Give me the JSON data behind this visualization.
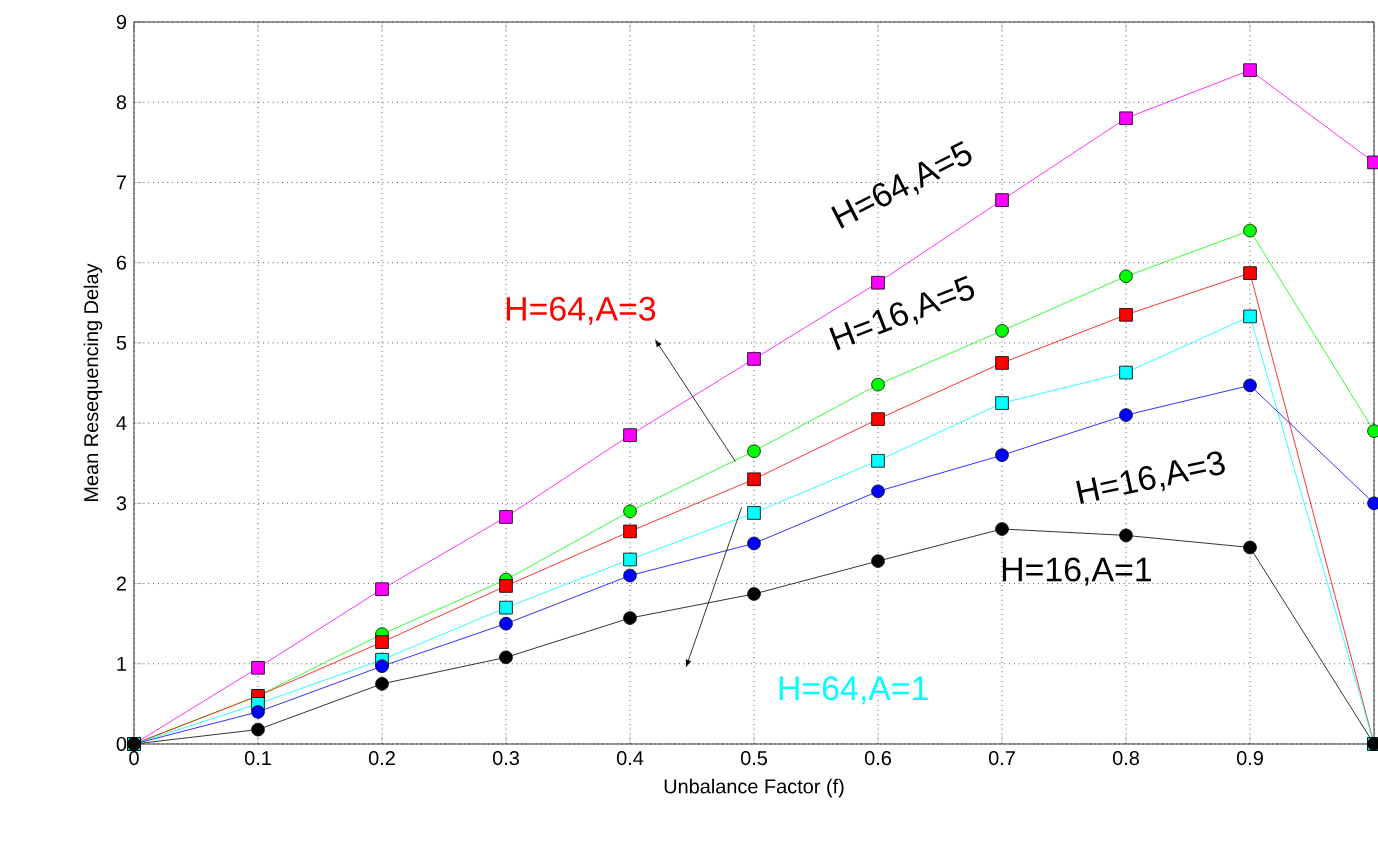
{
  "chart_data": {
    "type": "line",
    "xlabel": "Unbalance Factor (f)",
    "ylabel": "Mean Resequencing Delay",
    "x": [
      0,
      0.1,
      0.2,
      0.3,
      0.4,
      0.5,
      0.6,
      0.7,
      0.8,
      0.9,
      1
    ],
    "series": [
      {
        "name": "H=64,A=5",
        "color": "#ff00ff",
        "marker": "square",
        "values": [
          0,
          0.95,
          1.93,
          2.83,
          3.85,
          4.8,
          5.75,
          6.78,
          7.8,
          8.4,
          7.25
        ]
      },
      {
        "name": "H=16,A=5",
        "color": "#00ff00",
        "marker": "circle",
        "values": [
          0,
          0.6,
          1.37,
          2.05,
          2.9,
          3.65,
          4.48,
          5.15,
          5.83,
          6.4,
          3.9
        ]
      },
      {
        "name": "H=64,A=3",
        "color": "#ff0000",
        "marker": "square",
        "values": [
          0,
          0.6,
          1.27,
          1.97,
          2.65,
          3.3,
          4.05,
          4.75,
          5.35,
          5.87,
          0
        ]
      },
      {
        "name": "H=64,A=1",
        "color": "#00ffff",
        "marker": "square",
        "values": [
          0,
          0.5,
          1.05,
          1.7,
          2.3,
          2.88,
          3.53,
          4.25,
          4.63,
          5.33,
          0
        ]
      },
      {
        "name": "H=16,A=3",
        "color": "#0000ff",
        "marker": "circle",
        "values": [
          0,
          0.4,
          0.97,
          1.5,
          2.1,
          2.5,
          3.15,
          3.6,
          4.1,
          4.47,
          3.0
        ]
      },
      {
        "name": "H=16,A=1",
        "color": "#000000",
        "marker": "circle",
        "values": [
          0,
          0.18,
          0.75,
          1.08,
          1.57,
          1.87,
          2.28,
          2.68,
          2.6,
          2.45,
          0
        ]
      }
    ],
    "xlim": [
      0,
      1
    ],
    "ylim": [
      0,
      9
    ],
    "xticks": [
      0,
      0.1,
      0.2,
      0.3,
      0.4,
      0.5,
      0.6,
      0.7,
      0.8,
      0.9,
      {
        "value": 1,
        "label": null
      }
    ],
    "yticks": [
      0,
      1,
      2,
      3,
      4,
      5,
      6,
      7,
      8,
      9
    ],
    "grid": true
  }
}
